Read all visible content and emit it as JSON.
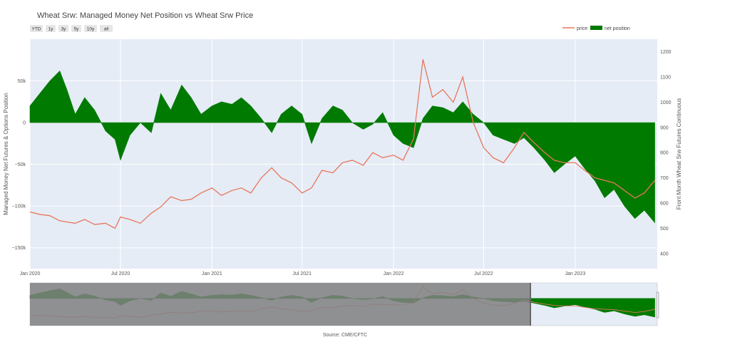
{
  "chart_data": {
    "type": "area",
    "title": "Wheat Srw: Managed Money Net Position vs Wheat Srw Price",
    "source": "Source: CME/CFTC",
    "range_buttons": [
      "YTD",
      "1y",
      "3y",
      "5y",
      "10y",
      "all"
    ],
    "y_left_label": "Managed Money Net Futures & Options Position",
    "y_right_label": "Front Month Wheat Srw Futures Continuous",
    "y_left_ticks": [
      "50k",
      "0",
      "−50k",
      "−100k",
      "−150k"
    ],
    "y_left_tick_values": [
      50000,
      0,
      -50000,
      -100000,
      -150000
    ],
    "y_right_ticks": [
      "1200",
      "1100",
      "1000",
      "900",
      "800",
      "700",
      "600",
      "500",
      "400"
    ],
    "y_right_tick_values": [
      1200,
      1100,
      1000,
      900,
      800,
      700,
      600,
      500,
      400
    ],
    "x_ticks": [
      "Jan 2020",
      "Jul 2020",
      "Jan 2021",
      "Jul 2021",
      "Jan 2022",
      "Jul 2022",
      "Jan 2023"
    ],
    "x_tick_values": [
      "2020-01-01",
      "2020-07-01",
      "2021-01-01",
      "2021-07-01",
      "2022-01-01",
      "2022-07-01",
      "2023-01-01"
    ],
    "x_range": [
      "2020-01-01",
      "2023-06-15"
    ],
    "y_left_range": [
      -175000,
      100000
    ],
    "y_right_range": [
      340,
      1250
    ],
    "legend": [
      "price",
      "net position"
    ],
    "legend_placement": "top-right",
    "colors": {
      "price": "#e8765c",
      "net_position": "#007a00",
      "plot_bg": "#e5ecf6",
      "selector_mask": "#808080"
    },
    "series": [
      {
        "name": "net position",
        "x": [
          "2020-01-01",
          "2020-01-21",
          "2020-02-10",
          "2020-03-01",
          "2020-03-15",
          "2020-04-01",
          "2020-04-20",
          "2020-05-10",
          "2020-06-01",
          "2020-06-20",
          "2020-07-01",
          "2020-07-20",
          "2020-08-10",
          "2020-09-01",
          "2020-09-20",
          "2020-10-10",
          "2020-11-01",
          "2020-11-20",
          "2020-12-10",
          "2021-01-01",
          "2021-01-20",
          "2021-02-10",
          "2021-03-01",
          "2021-03-20",
          "2021-04-10",
          "2021-05-01",
          "2021-05-20",
          "2021-06-10",
          "2021-07-01",
          "2021-07-20",
          "2021-08-10",
          "2021-09-01",
          "2021-09-20",
          "2021-10-10",
          "2021-11-01",
          "2021-11-20",
          "2021-12-10",
          "2022-01-01",
          "2022-01-20",
          "2022-02-10",
          "2022-03-01",
          "2022-03-20",
          "2022-04-10",
          "2022-05-01",
          "2022-05-20",
          "2022-06-10",
          "2022-07-01",
          "2022-07-20",
          "2022-08-10",
          "2022-09-01",
          "2022-09-20",
          "2022-10-10",
          "2022-11-01",
          "2022-11-20",
          "2022-12-10",
          "2023-01-01",
          "2023-01-20",
          "2023-02-10",
          "2023-03-01",
          "2023-03-20",
          "2023-04-10",
          "2023-05-01",
          "2023-05-20",
          "2023-06-10"
        ],
        "values": [
          20000,
          35000,
          50000,
          62000,
          40000,
          10000,
          30000,
          15000,
          -10000,
          -20000,
          -45000,
          -15000,
          0,
          -12000,
          35000,
          15000,
          45000,
          30000,
          10000,
          20000,
          25000,
          22000,
          30000,
          20000,
          5000,
          -12000,
          10000,
          20000,
          10000,
          -25000,
          5000,
          20000,
          15000,
          0,
          -8000,
          -2000,
          12000,
          -15000,
          -25000,
          -30000,
          5000,
          20000,
          18000,
          12000,
          25000,
          10000,
          0,
          -15000,
          -20000,
          -25000,
          -18000,
          -30000,
          -45000,
          -60000,
          -50000,
          -40000,
          -55000,
          -70000,
          -90000,
          -80000,
          -100000,
          -115000,
          -105000,
          -120000
        ]
      },
      {
        "name": "price",
        "x": [
          "2020-01-01",
          "2020-01-21",
          "2020-02-10",
          "2020-03-01",
          "2020-03-15",
          "2020-04-01",
          "2020-04-20",
          "2020-05-10",
          "2020-06-01",
          "2020-06-20",
          "2020-07-01",
          "2020-07-20",
          "2020-08-10",
          "2020-09-01",
          "2020-09-20",
          "2020-10-10",
          "2020-11-01",
          "2020-11-20",
          "2020-12-10",
          "2021-01-01",
          "2021-01-20",
          "2021-02-10",
          "2021-03-01",
          "2021-03-20",
          "2021-04-10",
          "2021-05-01",
          "2021-05-20",
          "2021-06-10",
          "2021-07-01",
          "2021-07-20",
          "2021-08-10",
          "2021-09-01",
          "2021-09-20",
          "2021-10-10",
          "2021-11-01",
          "2021-11-20",
          "2021-12-10",
          "2022-01-01",
          "2022-01-20",
          "2022-02-10",
          "2022-03-01",
          "2022-03-20",
          "2022-04-10",
          "2022-05-01",
          "2022-05-20",
          "2022-06-10",
          "2022-07-01",
          "2022-07-20",
          "2022-08-10",
          "2022-09-01",
          "2022-09-20",
          "2022-10-10",
          "2022-11-01",
          "2022-11-20",
          "2022-12-10",
          "2023-01-01",
          "2023-01-20",
          "2023-02-10",
          "2023-03-01",
          "2023-03-20",
          "2023-04-10",
          "2023-05-01",
          "2023-05-20",
          "2023-06-10"
        ],
        "values": [
          565,
          555,
          550,
          530,
          525,
          520,
          535,
          515,
          520,
          500,
          545,
          535,
          520,
          560,
          585,
          625,
          610,
          615,
          640,
          660,
          630,
          650,
          660,
          640,
          700,
          740,
          700,
          680,
          640,
          660,
          730,
          720,
          760,
          770,
          750,
          800,
          780,
          790,
          770,
          855,
          1170,
          1020,
          1050,
          1000,
          1100,
          920,
          820,
          780,
          760,
          820,
          880,
          840,
          800,
          770,
          760,
          760,
          730,
          700,
          690,
          680,
          650,
          620,
          640,
          690
        ]
      }
    ]
  }
}
